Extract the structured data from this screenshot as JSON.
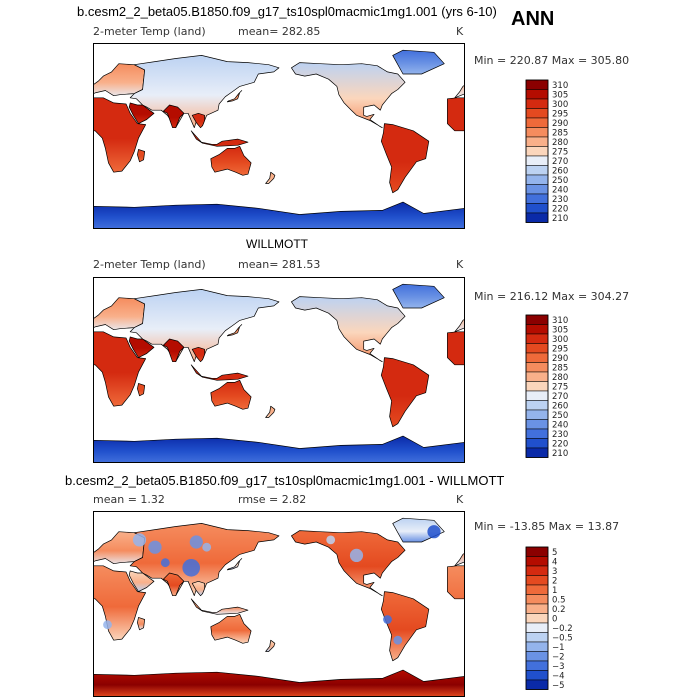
{
  "season": "ANN",
  "panels": [
    {
      "title": "b.cesm2_2_beta05.B1850.f09_g17_ts10spl0macmic1mg1.001 (yrs 6-10)",
      "variable": "2-meter Temp (land)",
      "mean_label": "mean= 282.85",
      "units": "K",
      "minmax": "Min = 220.87 Max = 305.80"
    },
    {
      "title": "WILLMOTT",
      "variable": "2-meter Temp (land)",
      "mean_label": "mean= 281.53",
      "units": "K",
      "minmax": "Min = 216.12 Max = 304.27"
    },
    {
      "title": "b.cesm2_2_beta05.B1850.f09_g17_ts10spl0macmic1mg1.001 - WILLMOTT",
      "mean_label": "mean =    1.32",
      "rmse_label": "rmse =    2.82",
      "units": "K",
      "minmax": "Min = -13.85 Max =  13.87"
    }
  ],
  "chart_data": [
    {
      "type": "heatmap",
      "title": "b.cesm2_2_beta05.B1850.f09_g17_ts10spl0macmic1mg1.001 (yrs 6-10)",
      "subtitle": "2-meter Temp (land)",
      "mean": 282.85,
      "units": "K",
      "min": 220.87,
      "max": 305.8,
      "colorbar_levels": [
        "310",
        "305",
        "300",
        "295",
        "290",
        "285",
        "280",
        "275",
        "270",
        "260",
        "250",
        "240",
        "230",
        "220",
        "210"
      ],
      "colorbar_colors": [
        "#8b0000",
        "#b40c00",
        "#d42a10",
        "#e44a20",
        "#ef6a3a",
        "#f58c5e",
        "#f9b08a",
        "#fbd6bc",
        "#e8eef8",
        "#bcd2f2",
        "#94b4ec",
        "#6a92e4",
        "#4270dc",
        "#2050cc",
        "#0a2aa8"
      ],
      "domain": "global land, Pacific-centered map"
    },
    {
      "type": "heatmap",
      "title": "WILLMOTT",
      "subtitle": "2-meter Temp (land)",
      "mean": 281.53,
      "units": "K",
      "min": 216.12,
      "max": 304.27,
      "colorbar_levels": [
        "310",
        "305",
        "300",
        "295",
        "290",
        "285",
        "280",
        "275",
        "270",
        "260",
        "250",
        "240",
        "230",
        "220",
        "210"
      ],
      "colorbar_colors": [
        "#8b0000",
        "#b40c00",
        "#d42a10",
        "#e44a20",
        "#ef6a3a",
        "#f58c5e",
        "#f9b08a",
        "#fbd6bc",
        "#e8eef8",
        "#bcd2f2",
        "#94b4ec",
        "#6a92e4",
        "#4270dc",
        "#2050cc",
        "#0a2aa8"
      ],
      "domain": "global land, Pacific-centered map"
    },
    {
      "type": "heatmap",
      "title": "b.cesm2_2_beta05.B1850.f09_g17_ts10spl0macmic1mg1.001 - WILLMOTT",
      "mean": 1.32,
      "rmse": 2.82,
      "units": "K",
      "min": -13.85,
      "max": 13.87,
      "colorbar_levels": [
        "5",
        "4",
        "3",
        "2",
        "1",
        "0.5",
        "0.2",
        "0",
        "−0.2",
        "−0.5",
        "−1",
        "−2",
        "−3",
        "−4",
        "−5"
      ],
      "colorbar_colors": [
        "#8b0000",
        "#b40c00",
        "#d42a10",
        "#e44a20",
        "#ef6a3a",
        "#f58c5e",
        "#f9b08a",
        "#fbd6bc",
        "#e8eef8",
        "#bcd2f2",
        "#94b4ec",
        "#6a92e4",
        "#4270dc",
        "#2050cc",
        "#0a2aa8"
      ],
      "domain": "global land difference, Pacific-centered map"
    }
  ]
}
